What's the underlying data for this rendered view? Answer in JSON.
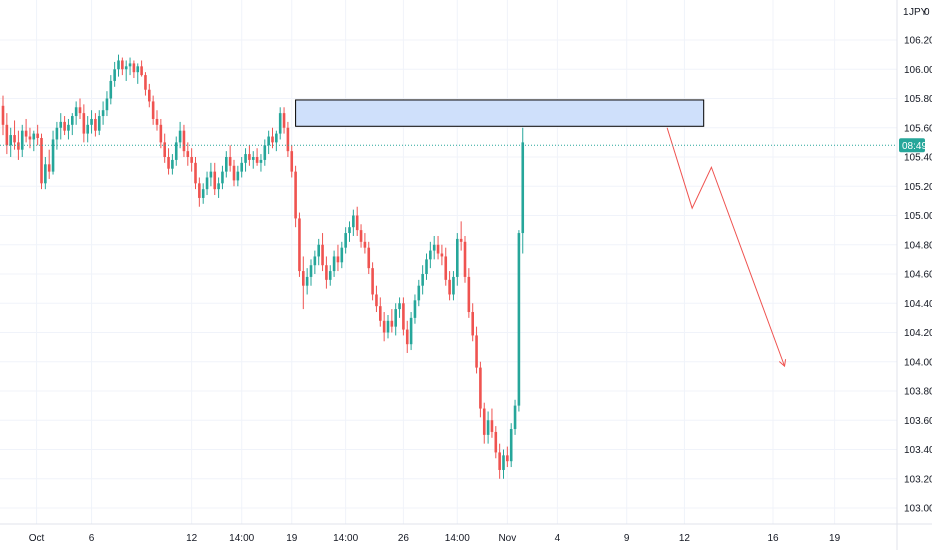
{
  "currency_label": "JPY",
  "scale_prefix": "1",
  "scale_suffix": "0",
  "chart_data": {
    "type": "candlestick",
    "title": "",
    "ylim": [
      102.95,
      106.45
    ],
    "y_ticks": [
      "106.200",
      "106.000",
      "105.800",
      "105.600",
      "105.400",
      "105.200",
      "105.000",
      "104.800",
      "104.600",
      "104.400",
      "104.200",
      "104.000",
      "103.800",
      "103.600",
      "103.400",
      "103.200",
      "103.000"
    ],
    "x_ticks": [
      {
        "label": "Oct",
        "bar": 3
      },
      {
        "label": "6",
        "bar": 23
      },
      {
        "label": "12",
        "bar": 49
      },
      {
        "label": "14:00",
        "bar": 62
      },
      {
        "label": "19",
        "bar": 75
      },
      {
        "label": "14:00",
        "bar": 89
      },
      {
        "label": "26",
        "bar": 104
      },
      {
        "label": "14:00",
        "bar": 118
      },
      {
        "label": "Nov",
        "bar": 131
      },
      {
        "label": "4",
        "bar": 144
      },
      {
        "label": "9",
        "bar": 162
      },
      {
        "label": "12",
        "bar": 177
      },
      {
        "label": "16",
        "bar": 200
      },
      {
        "label": "19",
        "bar": 216
      }
    ],
    "current_price": 105.48,
    "current_price_label": "08:49",
    "colors": {
      "up": "#26a69a",
      "down": "#ef5350",
      "zone_fill": "#cfe0fb",
      "zone_border": "#000000",
      "projection": "#ef5350"
    },
    "candles": [
      [
        105.75,
        105.82,
        105.55,
        105.62
      ],
      [
        105.62,
        105.7,
        105.42,
        105.48
      ],
      [
        105.48,
        105.6,
        105.4,
        105.55
      ],
      [
        105.55,
        105.65,
        105.45,
        105.5
      ],
      [
        105.5,
        105.58,
        105.38,
        105.45
      ],
      [
        105.45,
        105.62,
        105.4,
        105.58
      ],
      [
        105.58,
        105.66,
        105.5,
        105.54
      ],
      [
        105.54,
        105.6,
        105.46,
        105.52
      ],
      [
        105.52,
        105.58,
        105.44,
        105.56
      ],
      [
        105.56,
        105.62,
        105.48,
        105.53
      ],
      [
        105.53,
        105.56,
        105.18,
        105.22
      ],
      [
        105.22,
        105.4,
        105.18,
        105.35
      ],
      [
        105.35,
        105.45,
        105.25,
        105.3
      ],
      [
        105.3,
        105.58,
        105.28,
        105.52
      ],
      [
        105.52,
        105.64,
        105.45,
        105.6
      ],
      [
        105.6,
        105.7,
        105.52,
        105.64
      ],
      [
        105.64,
        105.68,
        105.55,
        105.58
      ],
      [
        105.58,
        105.66,
        105.52,
        105.62
      ],
      [
        105.62,
        105.7,
        105.55,
        105.68
      ],
      [
        105.68,
        105.78,
        105.62,
        105.74
      ],
      [
        105.74,
        105.8,
        105.66,
        105.7
      ],
      [
        105.7,
        105.76,
        105.5,
        105.56
      ],
      [
        105.56,
        105.68,
        105.5,
        105.62
      ],
      [
        105.62,
        105.72,
        105.56,
        105.66
      ],
      [
        105.66,
        105.7,
        105.54,
        105.58
      ],
      [
        105.58,
        105.72,
        105.55,
        105.68
      ],
      [
        105.68,
        105.78,
        105.62,
        105.72
      ],
      [
        105.72,
        105.85,
        105.68,
        105.8
      ],
      [
        105.8,
        105.96,
        105.76,
        105.92
      ],
      [
        105.92,
        106.05,
        105.88,
        106.0
      ],
      [
        106.0,
        106.1,
        105.95,
        106.06
      ],
      [
        106.06,
        106.08,
        105.96,
        106.0
      ],
      [
        106.0,
        106.06,
        105.92,
        106.02
      ],
      [
        106.02,
        106.08,
        105.96,
        106.04
      ],
      [
        106.04,
        106.06,
        105.94,
        105.98
      ],
      [
        105.98,
        106.04,
        105.9,
        106.02
      ],
      [
        106.02,
        106.06,
        105.95,
        105.96
      ],
      [
        105.96,
        105.98,
        105.82,
        105.86
      ],
      [
        105.86,
        105.9,
        105.74,
        105.78
      ],
      [
        105.78,
        105.82,
        105.62,
        105.66
      ],
      [
        105.66,
        105.72,
        105.58,
        105.62
      ],
      [
        105.62,
        105.66,
        105.46,
        105.5
      ],
      [
        105.5,
        105.56,
        105.36,
        105.4
      ],
      [
        105.4,
        105.46,
        105.28,
        105.32
      ],
      [
        105.32,
        105.42,
        105.28,
        105.38
      ],
      [
        105.38,
        105.54,
        105.34,
        105.5
      ],
      [
        105.5,
        105.64,
        105.46,
        105.58
      ],
      [
        105.58,
        105.62,
        105.4,
        105.44
      ],
      [
        105.44,
        105.5,
        105.34,
        105.4
      ],
      [
        105.4,
        105.46,
        105.3,
        105.36
      ],
      [
        105.36,
        105.4,
        105.18,
        105.22
      ],
      [
        105.22,
        105.26,
        105.06,
        105.12
      ],
      [
        105.12,
        105.22,
        105.08,
        105.18
      ],
      [
        105.18,
        105.3,
        105.14,
        105.26
      ],
      [
        105.26,
        105.36,
        105.2,
        105.3
      ],
      [
        105.3,
        105.36,
        105.14,
        105.18
      ],
      [
        105.18,
        105.26,
        105.12,
        105.22
      ],
      [
        105.22,
        105.34,
        105.18,
        105.3
      ],
      [
        105.3,
        105.44,
        105.26,
        105.4
      ],
      [
        105.4,
        105.48,
        105.3,
        105.34
      ],
      [
        105.34,
        105.38,
        105.2,
        105.24
      ],
      [
        105.24,
        105.34,
        105.2,
        105.3
      ],
      [
        105.3,
        105.4,
        105.26,
        105.36
      ],
      [
        105.36,
        105.46,
        105.3,
        105.42
      ],
      [
        105.42,
        105.48,
        105.34,
        105.38
      ],
      [
        105.38,
        105.44,
        105.32,
        105.4
      ],
      [
        105.4,
        105.46,
        105.34,
        105.36
      ],
      [
        105.36,
        105.42,
        105.3,
        105.38
      ],
      [
        105.38,
        105.52,
        105.34,
        105.48
      ],
      [
        105.48,
        105.58,
        105.42,
        105.54
      ],
      [
        105.54,
        105.6,
        105.46,
        105.5
      ],
      [
        105.5,
        105.58,
        105.44,
        105.56
      ],
      [
        105.56,
        105.74,
        105.52,
        105.7
      ],
      [
        105.7,
        105.74,
        105.56,
        105.6
      ],
      [
        105.6,
        105.64,
        105.4,
        105.44
      ],
      [
        105.44,
        105.48,
        105.26,
        105.3
      ],
      [
        105.3,
        105.34,
        104.92,
        104.98
      ],
      [
        104.98,
        105.02,
        104.58,
        104.62
      ],
      [
        104.62,
        104.72,
        104.36,
        104.52
      ],
      [
        104.52,
        104.64,
        104.46,
        104.58
      ],
      [
        104.58,
        104.7,
        104.52,
        104.66
      ],
      [
        104.66,
        104.76,
        104.6,
        104.72
      ],
      [
        104.72,
        104.84,
        104.66,
        104.8
      ],
      [
        104.8,
        104.88,
        104.62,
        104.66
      ],
      [
        104.66,
        104.72,
        104.5,
        104.56
      ],
      [
        104.56,
        104.66,
        104.52,
        104.62
      ],
      [
        104.62,
        104.76,
        104.58,
        104.72
      ],
      [
        104.72,
        104.8,
        104.62,
        104.68
      ],
      [
        104.68,
        104.82,
        104.64,
        104.78
      ],
      [
        104.78,
        104.92,
        104.74,
        104.88
      ],
      [
        104.88,
        104.96,
        104.82,
        104.92
      ],
      [
        104.92,
        105.04,
        104.86,
        105.0
      ],
      [
        105.0,
        105.06,
        104.86,
        104.9
      ],
      [
        104.9,
        104.94,
        104.78,
        104.82
      ],
      [
        104.82,
        104.88,
        104.74,
        104.78
      ],
      [
        104.78,
        104.82,
        104.6,
        104.64
      ],
      [
        104.64,
        104.68,
        104.42,
        104.46
      ],
      [
        104.46,
        104.52,
        104.34,
        104.38
      ],
      [
        104.38,
        104.44,
        104.24,
        104.28
      ],
      [
        104.28,
        104.34,
        104.14,
        104.2
      ],
      [
        104.2,
        104.32,
        104.16,
        104.28
      ],
      [
        104.28,
        104.36,
        104.2,
        104.24
      ],
      [
        104.24,
        104.4,
        104.18,
        104.36
      ],
      [
        104.36,
        104.44,
        104.3,
        104.4
      ],
      [
        104.4,
        104.44,
        104.18,
        104.22
      ],
      [
        104.22,
        104.28,
        104.06,
        104.12
      ],
      [
        104.12,
        104.34,
        104.08,
        104.3
      ],
      [
        104.3,
        104.46,
        104.26,
        104.42
      ],
      [
        104.42,
        104.56,
        104.38,
        104.52
      ],
      [
        104.52,
        104.66,
        104.46,
        104.6
      ],
      [
        104.6,
        104.74,
        104.56,
        104.7
      ],
      [
        104.7,
        104.82,
        104.64,
        104.76
      ],
      [
        104.76,
        104.86,
        104.7,
        104.8
      ],
      [
        104.8,
        104.86,
        104.7,
        104.74
      ],
      [
        104.74,
        104.8,
        104.66,
        104.72
      ],
      [
        104.72,
        104.78,
        104.52,
        104.56
      ],
      [
        104.56,
        104.62,
        104.42,
        104.46
      ],
      [
        104.46,
        104.62,
        104.42,
        104.58
      ],
      [
        104.58,
        104.88,
        104.52,
        104.84
      ],
      [
        104.84,
        104.96,
        104.76,
        104.82
      ],
      [
        104.82,
        104.86,
        104.54,
        104.58
      ],
      [
        104.58,
        104.64,
        104.3,
        104.34
      ],
      [
        104.34,
        104.4,
        104.14,
        104.18
      ],
      [
        104.18,
        104.24,
        103.92,
        103.96
      ],
      [
        103.96,
        104.0,
        103.62,
        103.68
      ],
      [
        103.68,
        103.72,
        103.44,
        103.5
      ],
      [
        103.5,
        103.66,
        103.44,
        103.6
      ],
      [
        103.6,
        103.68,
        103.48,
        103.52
      ],
      [
        103.52,
        103.56,
        103.34,
        103.38
      ],
      [
        103.38,
        103.44,
        103.2,
        103.26
      ],
      [
        103.26,
        103.4,
        103.2,
        103.36
      ],
      [
        103.36,
        103.42,
        103.28,
        103.32
      ],
      [
        103.32,
        103.58,
        103.28,
        103.54
      ],
      [
        103.54,
        103.74,
        103.5,
        103.7
      ],
      [
        103.7,
        104.9,
        103.66,
        104.88
      ],
      [
        104.88,
        105.6,
        104.74,
        105.5
      ]
    ],
    "supply_zone": {
      "x_start_bar": 76,
      "x_end_bar": 182,
      "y_low": 105.61,
      "y_high": 105.79
    },
    "projection": [
      [
        172.5,
        105.6
      ],
      [
        179,
        105.05
      ],
      [
        184,
        105.33
      ],
      [
        203,
        103.97
      ]
    ]
  }
}
